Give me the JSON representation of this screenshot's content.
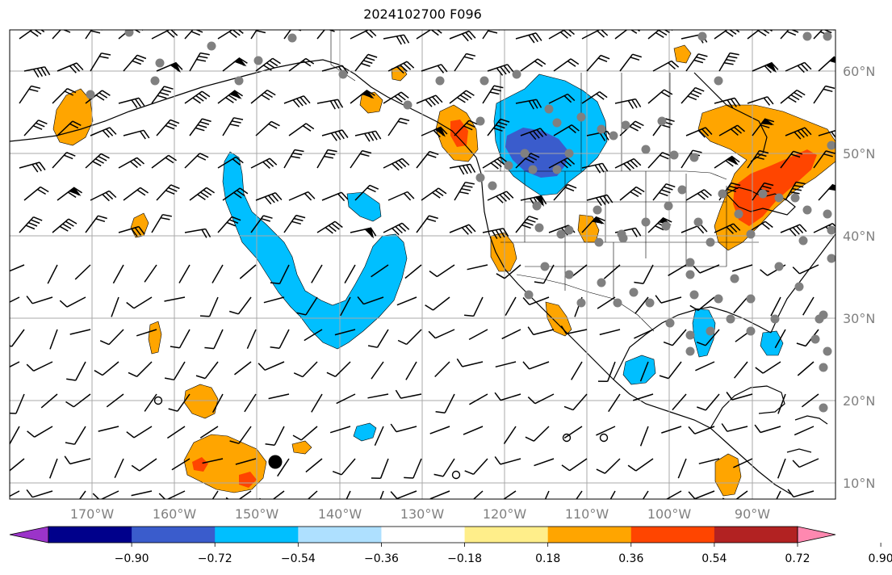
{
  "title": "2024102700 F096",
  "map": {
    "lon_range": [
      -180,
      -79
    ],
    "lat_range": [
      8,
      65
    ],
    "lon_ticks": [
      -170,
      -160,
      -150,
      -140,
      -130,
      -120,
      -110,
      -100,
      -90
    ],
    "lat_ticks": [
      10,
      20,
      30,
      40,
      50,
      60
    ],
    "lon_tick_labels": [
      "170°W",
      "160°W",
      "150°W",
      "140°W",
      "130°W",
      "120°W",
      "110°W",
      "100°W",
      "90°W"
    ],
    "lat_tick_labels": [
      "10°N",
      "20°N",
      "30°N",
      "40°N",
      "50°N",
      "60°N"
    ],
    "grid": true,
    "features": [
      "coastlines",
      "country-borders",
      "state-borders",
      "wind-barbs",
      "station-dots",
      "shaded-contours"
    ]
  },
  "colorbar": {
    "orientation": "horizontal",
    "extend": "both",
    "tick_labels": [
      "−0.90",
      "−0.72",
      "−0.54",
      "−0.36",
      "−0.18",
      "0.18",
      "0.36",
      "0.54",
      "0.72",
      "0.90"
    ],
    "colors": [
      "#9b34c9",
      "#00008b",
      "#3a5ccc",
      "#00bfff",
      "#aee0ff",
      "#ffffff",
      "#ffee8a",
      "#ffa500",
      "#ff4500",
      "#b22222",
      "#ff88b0"
    ]
  }
}
